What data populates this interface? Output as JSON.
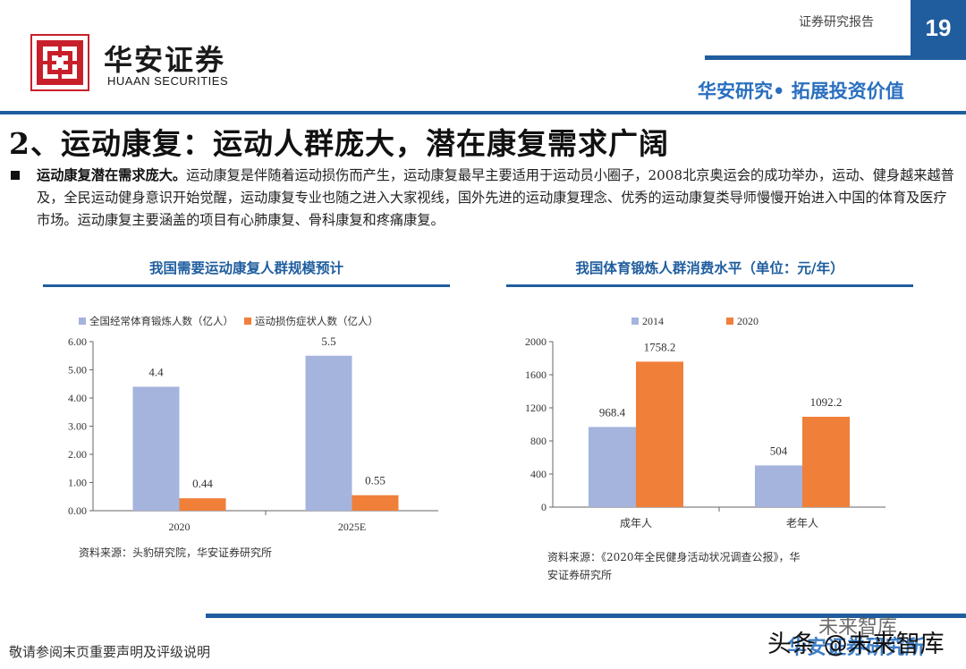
{
  "header": {
    "brand_cn": "华安证券",
    "brand_en": "HUAAN SECURITIES",
    "report_type": "证券研究报告",
    "page_number": "19",
    "slogan": "华安研究• 拓展投资价值"
  },
  "section": {
    "title": "2、运动康复：运动人群庞大，潜在康复需求广阔",
    "bold_lead": "运动康复潜在需求庞大。",
    "body": "运动康复是伴随着运动损伤而产生，运动康复最早主要适用于运动员小圈子，2008北京奥运会的成功举办，运动、健身越来越普及，全民运动健身意识开始觉醒，运动康复专业也随之进入大家视线，国外先进的运动康复理念、优秀的运动康复类导师慢慢开始进入中国的体育及医疗市场。运动康复主要涵盖的项目有心肺康复、骨科康复和疼痛康复。"
  },
  "colors": {
    "blue_series": "#a4b4dd",
    "orange_series": "#f07f3a",
    "brand": "#1f5d9e"
  },
  "chart_data": [
    {
      "type": "bar",
      "title": "我国需要运动康复人群规模预计",
      "categories": [
        "2020",
        "2025E"
      ],
      "series": [
        {
          "name": "全国经常体育锻炼人数（亿人）",
          "values": [
            4.4,
            5.5
          ],
          "labels": [
            "4.4",
            "5.5"
          ]
        },
        {
          "name": "运动损伤症状人数（亿人）",
          "values": [
            0.44,
            0.55
          ],
          "labels": [
            "0.44",
            "0.55"
          ]
        }
      ],
      "ylim": [
        0,
        6
      ],
      "yticks": [
        "0.00",
        "1.00",
        "2.00",
        "3.00",
        "4.00",
        "5.00",
        "6.00"
      ],
      "legend": "top",
      "grid": false,
      "source": "资料来源：头豹研究院，华安证券研究所"
    },
    {
      "type": "bar",
      "title": "我国体育锻炼人群消费水平（单位：元/年）",
      "categories": [
        "成年人",
        "老年人"
      ],
      "series": [
        {
          "name": "2014",
          "values": [
            968.4,
            504
          ],
          "labels": [
            "968.4",
            "504"
          ]
        },
        {
          "name": "2020",
          "values": [
            1758.2,
            1092.2
          ],
          "labels": [
            "1758.2",
            "1092.2"
          ]
        }
      ],
      "ylim": [
        0,
        2000
      ],
      "yticks": [
        "0",
        "400",
        "800",
        "1200",
        "1600",
        "2000"
      ],
      "legend": "top",
      "grid": false,
      "source_line1": "资料来源：《2020年全民健身活动状况调查公报》，华",
      "source_line2": "安证券研究所"
    }
  ],
  "footer": {
    "disclaimer": "敬请参阅末页重要声明及评级说明",
    "watermark_top": "未来智库",
    "watermark_mid": "华安证券研究所",
    "watermark_front": "头条 @未来智库"
  }
}
